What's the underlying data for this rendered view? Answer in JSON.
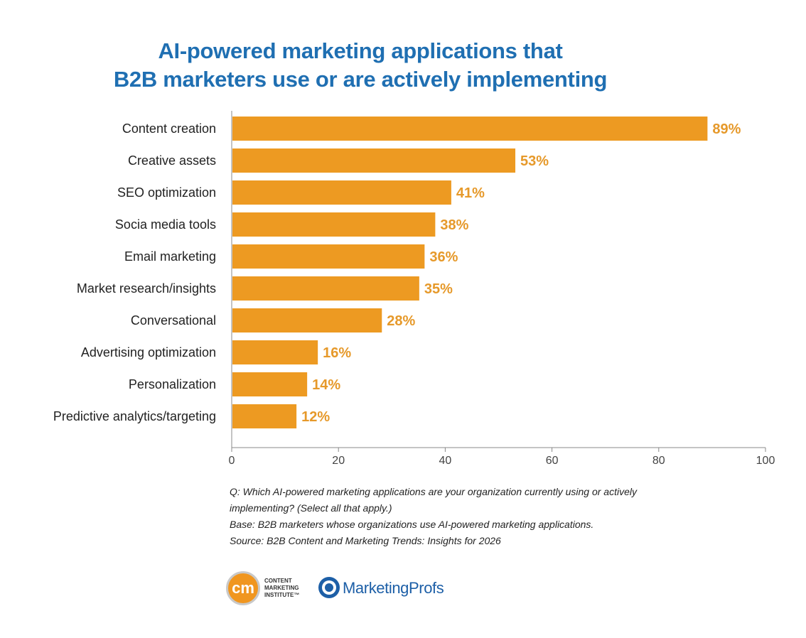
{
  "chart_data": {
    "type": "bar",
    "orientation": "horizontal",
    "title": [
      "AI-powered marketing applications that",
      "B2B marketers use or are actively implementing"
    ],
    "categories": [
      "Content creation",
      "Creative assets",
      "SEO optimization",
      "Socia media tools",
      "Email marketing",
      "Market research/insights",
      "Conversational",
      "Advertising optimization",
      "Personalization",
      "Predictive analytics/targeting"
    ],
    "values": [
      89,
      53,
      41,
      38,
      36,
      35,
      28,
      16,
      14,
      12
    ],
    "value_labels": [
      "89%",
      "53%",
      "41%",
      "38%",
      "36%",
      "35%",
      "28%",
      "16%",
      "14%",
      "12%"
    ],
    "xlim": [
      0,
      100
    ],
    "xticks": [
      0,
      20,
      40,
      60,
      80,
      100
    ],
    "xlabel": "",
    "ylabel": "",
    "grid": false,
    "bar_color": "#ed9a22",
    "label_color": "#e6992a"
  },
  "notes": [
    "Q: Which AI-powered marketing applications are your organization currently using or actively",
    "implementing? (Select all that apply.)",
    "Base: B2B marketers whose organizations use AI-powered marketing applications.",
    "Source: B2B Content and Marketing Trends: Insights for 2026"
  ],
  "logos": {
    "cmi_badge": "cm",
    "cmi_text": "CONTENT\nMARKETING\nINSTITUTE™",
    "cmi_icon": "cmi-logo",
    "mp_text": "MarketingProfs",
    "mp_icon": "marketingprofs-logo"
  },
  "colors": {
    "title": "#1f6fb2",
    "bar": "#ed9a22",
    "value_label": "#e6992a",
    "brand_blue": "#1d5fa7"
  }
}
